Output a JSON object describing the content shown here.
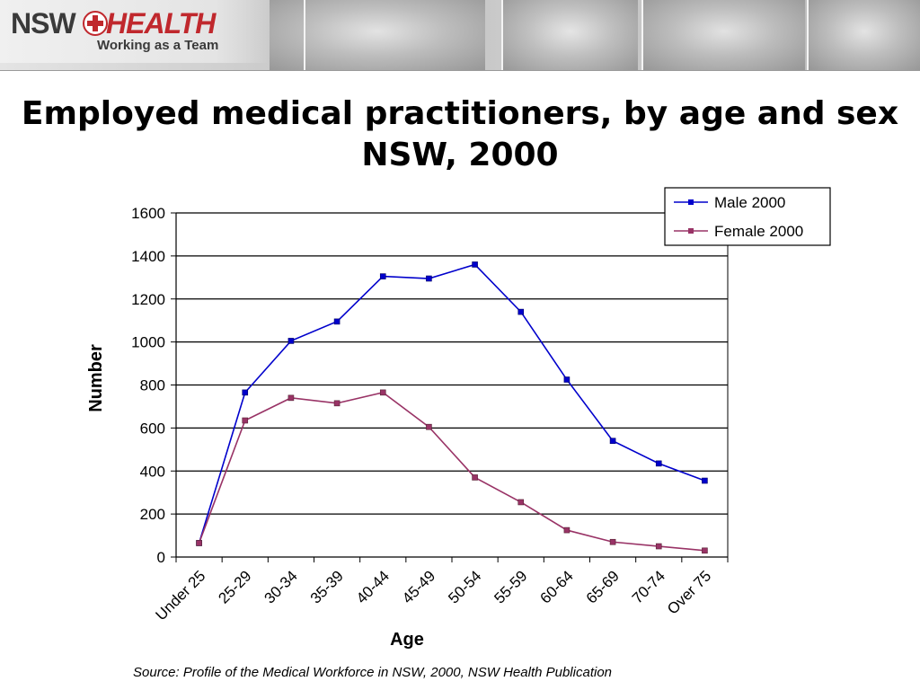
{
  "header": {
    "logo_nsw": "NSW",
    "logo_health": "HEALTH",
    "logo_tagline": "Working as a Team"
  },
  "title_line1": "Employed medical practitioners, by age and sex",
  "title_line2": "NSW, 2000",
  "source": "Source: Profile of the Medical Workforce in NSW, 2000, NSW Health Publication",
  "chart_data": {
    "type": "line",
    "categories": [
      "Under 25",
      "25-29",
      "30-34",
      "35-39",
      "40-44",
      "45-49",
      "50-54",
      "55-59",
      "60-64",
      "65-69",
      "70-74",
      "Over 75"
    ],
    "series": [
      {
        "name": "Male 2000",
        "color": "#0000cc",
        "values": [
          65,
          765,
          1005,
          1095,
          1305,
          1295,
          1360,
          1140,
          825,
          540,
          435,
          355
        ]
      },
      {
        "name": "Female 2000",
        "color": "#993366",
        "values": [
          65,
          635,
          740,
          715,
          765,
          605,
          370,
          255,
          125,
          70,
          50,
          30
        ]
      }
    ],
    "xlabel": "Age",
    "ylabel": "Number",
    "ylim": [
      0,
      1600
    ],
    "yticks": [
      0,
      200,
      400,
      600,
      800,
      1000,
      1200,
      1400,
      1600
    ],
    "grid": true,
    "legend": "top-right"
  }
}
